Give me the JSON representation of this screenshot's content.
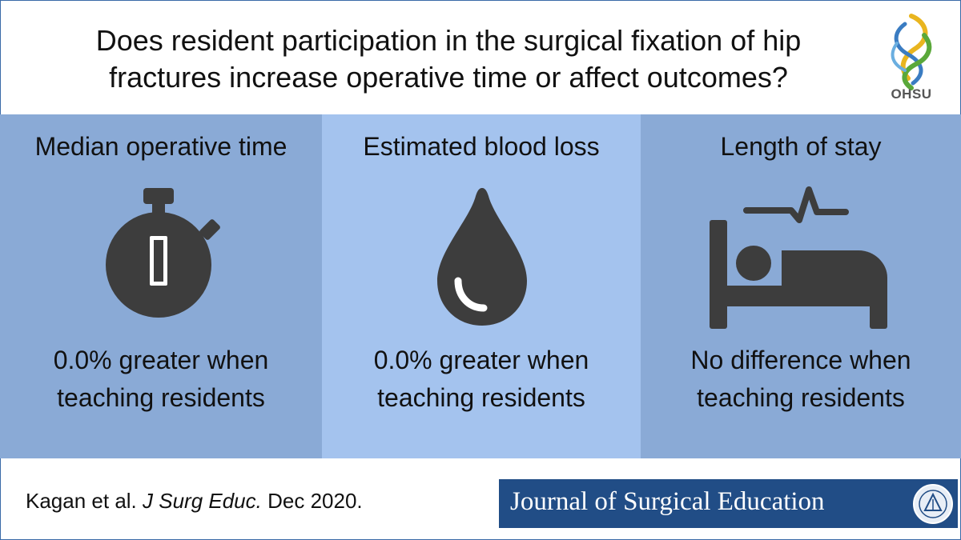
{
  "header": {
    "question_line1": "Does resident participation in the surgical fixation of hip",
    "question_line2": "fractures increase operative time or affect outcomes?",
    "logo_text": "OHSU"
  },
  "panels": [
    {
      "title": "Median operative time",
      "icon": "stopwatch-icon",
      "result_line1": "0.0% greater when",
      "result_line2": "teaching residents"
    },
    {
      "title": "Estimated blood loss",
      "icon": "blood-drop-icon",
      "result_line1": "0.0% greater when",
      "result_line2": "teaching residents"
    },
    {
      "title": "Length of stay",
      "icon": "hospital-bed-icon",
      "result_line1": "No difference when",
      "result_line2": "teaching residents"
    }
  ],
  "footer": {
    "citation_authors": "Kagan et al.",
    "citation_journal": "J Surg Educ.",
    "citation_date": "Dec 2020.",
    "journal_name": "Journal of Surgical Education"
  },
  "colors": {
    "panel_dark": "#8aaad6",
    "panel_light": "#a4c3ee",
    "icon": "#3d3d3d",
    "journal_banner": "#214d86"
  }
}
